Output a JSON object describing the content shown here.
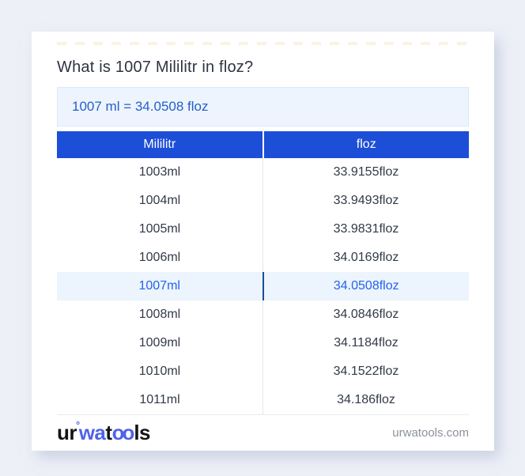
{
  "page": {
    "title": "What is 1007 Mililitr in floz?",
    "result": "1007 ml = 34.0508 floz"
  },
  "table": {
    "headers": [
      "Mililitr",
      "floz"
    ],
    "rows": [
      {
        "ml": "1003ml",
        "floz": "33.9155floz",
        "highlight": false
      },
      {
        "ml": "1004ml",
        "floz": "33.9493floz",
        "highlight": false
      },
      {
        "ml": "1005ml",
        "floz": "33.9831floz",
        "highlight": false
      },
      {
        "ml": "1006ml",
        "floz": "34.0169floz",
        "highlight": false
      },
      {
        "ml": "1007ml",
        "floz": "34.0508floz",
        "highlight": true
      },
      {
        "ml": "1008ml",
        "floz": "34.0846floz",
        "highlight": false
      },
      {
        "ml": "1009ml",
        "floz": "34.1184floz",
        "highlight": false
      },
      {
        "ml": "1010ml",
        "floz": "34.1522floz",
        "highlight": false
      },
      {
        "ml": "1011ml",
        "floz": "34.186floz",
        "highlight": false
      }
    ]
  },
  "footer": {
    "logo": {
      "p1": "ur",
      "ring": "°",
      "p2": "wa",
      "p3": "t",
      "p4": "oo",
      "p5": "ls"
    },
    "domain": "urwatools.com"
  },
  "colors": {
    "header_bg": "#1d4ed8",
    "accent_blue": "#2563eb",
    "result_text": "#2460c8",
    "highlight_bg": "#ecf4fd",
    "page_bg": "#eef0f7"
  }
}
